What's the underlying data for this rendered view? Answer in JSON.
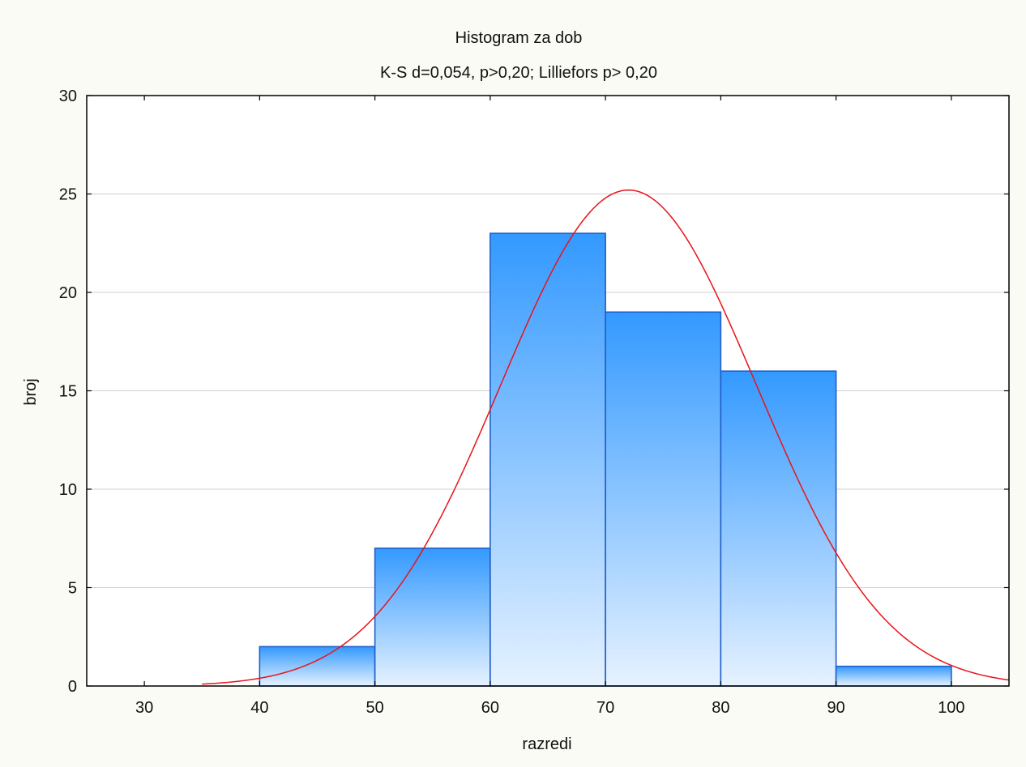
{
  "colors": {
    "page_background": "#fbfbf5",
    "plot_background": "#ffffff",
    "bar_top": "#3399ff",
    "bar_bottom": "#e6f2ff",
    "bar_stroke": "#1f5fc8",
    "curve": "#e8141a",
    "grid": "#d0d0d0",
    "frame": "#000000"
  },
  "chart_data": {
    "type": "bar",
    "title": "Histogram za dob",
    "subtitle": "K-S d=0,054,  p>0,20; Lilliefors p> 0,20",
    "xlabel": "razredi",
    "ylabel": "broj",
    "xlim": [
      25,
      105
    ],
    "ylim": [
      0,
      30
    ],
    "x_ticks": [
      30,
      40,
      50,
      60,
      70,
      80,
      90,
      100
    ],
    "y_ticks": [
      0,
      5,
      10,
      15,
      20,
      25,
      30
    ],
    "grid": "horizontal",
    "bins": [
      {
        "from": 40,
        "to": 50,
        "count": 2
      },
      {
        "from": 50,
        "to": 60,
        "count": 7
      },
      {
        "from": 60,
        "to": 70,
        "count": 23
      },
      {
        "from": 70,
        "to": 80,
        "count": 19
      },
      {
        "from": 80,
        "to": 90,
        "count": 16
      },
      {
        "from": 90,
        "to": 100,
        "count": 1
      }
    ],
    "normal_curve": {
      "type": "line",
      "x_start": 35,
      "x_end": 105,
      "peak_x": 72,
      "peak_y": 25.2,
      "sd": 11.1
    }
  }
}
